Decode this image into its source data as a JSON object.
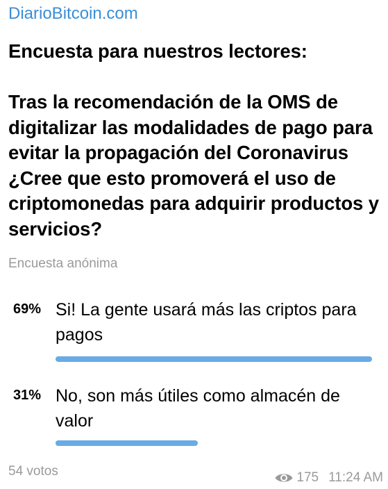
{
  "channel": {
    "name": "DiarioBitcoin.com"
  },
  "poll": {
    "question": "Encuesta para nuestros lectores:\n\nTras la recomendación de la OMS de digitalizar las modalidades de pago para evitar la propagación del Coronavirus ¿Cree que esto promoverá el uso de criptomonedas para adquirir productos y servicios?",
    "type_label": "Encuesta anónima",
    "options": [
      {
        "percent_label": "69%",
        "percent": 69,
        "text": "Si! La gente usará más las criptos para pagos"
      },
      {
        "percent_label": "31%",
        "percent": 31,
        "text": "No, son más útiles como almacén de valor"
      }
    ],
    "votes_label": "54 votos"
  },
  "meta": {
    "views": "175",
    "time": "11:24 AM"
  },
  "colors": {
    "channel_name": "#3a8ed6",
    "bar": "#69abe4",
    "muted_text": "#9a9a9a"
  },
  "icons": {
    "views": "eye-icon"
  }
}
